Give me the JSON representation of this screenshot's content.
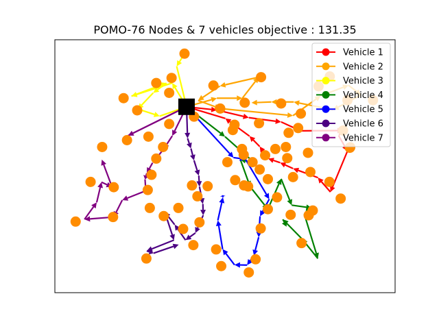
{
  "chart_data": {
    "type": "scatter",
    "title": "POMO-76 Nodes & 7 vehicles objective : 131.35",
    "xlabel": "",
    "ylabel": "",
    "xlim": [
      0,
      100
    ],
    "ylim": [
      0,
      100
    ],
    "axis_ticks_visible": false,
    "grid": false,
    "legend_position": "top-right",
    "node_color": "#FF8C00",
    "depot_color": "#000000",
    "depot": [
      38.7,
      73.5
    ],
    "nodes": [
      [
        38.1,
        94.5
      ],
      [
        34.3,
        84.9
      ],
      [
        29.8,
        82.9
      ],
      [
        33.6,
        79.0
      ],
      [
        20.2,
        76.9
      ],
      [
        24.2,
        72.1
      ],
      [
        46.6,
        81.9
      ],
      [
        60.6,
        85.2
      ],
      [
        55.8,
        75.1
      ],
      [
        66.5,
        74.8
      ],
      [
        77.5,
        81.6
      ],
      [
        80.8,
        85.5
      ],
      [
        86.0,
        76.1
      ],
      [
        93.5,
        76.1
      ],
      [
        84.7,
        64.1
      ],
      [
        72.3,
        70.8
      ],
      [
        48.6,
        72.8
      ],
      [
        40.9,
        69.6
      ],
      [
        33.6,
        66.7
      ],
      [
        27.5,
        61.7
      ],
      [
        21.2,
        60.3
      ],
      [
        13.9,
        57.6
      ],
      [
        31.8,
        57.6
      ],
      [
        29.8,
        53.0
      ],
      [
        28.4,
        46.6
      ],
      [
        27.3,
        40.6
      ],
      [
        27.9,
        33.5
      ],
      [
        40.3,
        42.4
      ],
      [
        41.9,
        38.1
      ],
      [
        36.3,
        33.5
      ],
      [
        32.0,
        30.3
      ],
      [
        42.5,
        27.8
      ],
      [
        37.7,
        25.2
      ],
      [
        40.7,
        18.8
      ],
      [
        26.9,
        13.5
      ],
      [
        17.1,
        29.9
      ],
      [
        6.1,
        28.1
      ],
      [
        10.5,
        43.8
      ],
      [
        17.3,
        41.7
      ],
      [
        52.3,
        64.3
      ],
      [
        55.0,
        56.8
      ],
      [
        61.8,
        54.3
      ],
      [
        60.2,
        48.7
      ],
      [
        58.1,
        51.6
      ],
      [
        55.5,
        54.5
      ],
      [
        50.7,
        51.6
      ],
      [
        62.6,
        44.9
      ],
      [
        55.6,
        42.4
      ],
      [
        65.3,
        37.7
      ],
      [
        62.6,
        33.0
      ],
      [
        69.3,
        30.8
      ],
      [
        60.5,
        25.4
      ],
      [
        72.5,
        19.6
      ],
      [
        47.4,
        17.1
      ],
      [
        44.9,
        42.1
      ],
      [
        48.9,
        10.5
      ],
      [
        59.0,
        13.2
      ],
      [
        57.0,
        8.0
      ],
      [
        74.6,
        30.6
      ],
      [
        74.4,
        55.3
      ],
      [
        68.3,
        53.2
      ],
      [
        67.9,
        57.6
      ],
      [
        70.0,
        45.7
      ],
      [
        68.7,
        63.2
      ],
      [
        75.1,
        47.7
      ],
      [
        86.7,
        57.3
      ],
      [
        80.7,
        43.8
      ],
      [
        84.0,
        37.2
      ],
      [
        75.8,
        32.5
      ],
      [
        86.8,
        57.5
      ],
      [
        56.8,
        42.0
      ],
      [
        53.0,
        44.5
      ],
      [
        64.8,
        56.8
      ],
      [
        52.8,
        66.4
      ],
      [
        60.0,
        67.0
      ],
      [
        71.5,
        65.1
      ]
    ],
    "routes_note": "",
    "series": [
      {
        "name": "Vehicle 1",
        "color": "#FF0000",
        "path": [
          [
            38.7,
            73.5
          ],
          [
            47.6,
            72.2
          ],
          [
            57.0,
            69.2
          ],
          [
            66.5,
            67.5
          ],
          [
            72.2,
            64.0
          ],
          [
            84.7,
            64.1
          ],
          [
            83.4,
            62.1
          ],
          [
            86.0,
            56.0
          ],
          [
            81.0,
            39.8
          ],
          [
            77.3,
            45.5
          ],
          [
            70.0,
            49.1
          ],
          [
            66.2,
            51.4
          ],
          [
            62.7,
            53.0
          ],
          [
            60.2,
            57.8
          ],
          [
            57.2,
            61.9
          ],
          [
            50.1,
            68.9
          ],
          [
            38.7,
            73.5
          ]
        ]
      },
      {
        "name": "Vehicle 2",
        "color": "#FFA500",
        "path": [
          [
            38.7,
            73.5
          ],
          [
            47.6,
            76.9
          ],
          [
            55.1,
            76.9
          ],
          [
            59.9,
            85.2
          ],
          [
            48.5,
            81.7
          ],
          [
            42.1,
            76.0
          ],
          [
            48.6,
            72.8
          ],
          [
            70.0,
            70.0
          ],
          [
            78.1,
            77.8
          ],
          [
            86.3,
            82.0
          ],
          [
            90.0,
            78.2
          ],
          [
            81.8,
            72.3
          ],
          [
            70.2,
            75.4
          ],
          [
            63.6,
            75.4
          ],
          [
            57.8,
            75.1
          ]
        ]
      },
      {
        "name": "Vehicle 3",
        "color": "#FFFF00",
        "path": [
          [
            38.1,
            94.5
          ],
          [
            35.8,
            89.5
          ],
          [
            38.7,
            73.5
          ],
          [
            34.5,
            82.9
          ],
          [
            22.5,
            77.7
          ],
          [
            32.8,
            82.9
          ],
          [
            28.9,
            79.0
          ],
          [
            24.4,
            72.6
          ],
          [
            30.8,
            69.8
          ],
          [
            38.7,
            73.5
          ]
        ]
      },
      {
        "name": "Vehicle 4",
        "color": "#008000",
        "path": [
          [
            38.7,
            73.5
          ],
          [
            50.0,
            61.7
          ],
          [
            58.8,
            51.2
          ],
          [
            54.5,
            52.7
          ],
          [
            57.4,
            41.9
          ],
          [
            62.6,
            33.0
          ],
          [
            66.5,
            45.0
          ],
          [
            69.6,
            34.6
          ],
          [
            75.5,
            33.5
          ],
          [
            73.3,
            31.1
          ],
          [
            77.3,
            13.5
          ],
          [
            72.6,
            21.3
          ],
          [
            67.0,
            29.0
          ],
          [
            68.1,
            26.1
          ]
        ]
      },
      {
        "name": "Vehicle 5",
        "color": "#0000FF",
        "path": [
          [
            38.7,
            73.5
          ],
          [
            52.5,
            53.4
          ],
          [
            56.0,
            52.8
          ],
          [
            63.0,
            37.0
          ],
          [
            60.3,
            30.2
          ],
          [
            59.9,
            21.9
          ],
          [
            58.5,
            14.7
          ],
          [
            56.5,
            10.9
          ],
          [
            52.8,
            11.0
          ],
          [
            49.3,
            17.2
          ],
          [
            47.9,
            28.6
          ],
          [
            49.4,
            37.7
          ],
          [
            49.3,
            38.6
          ]
        ]
      },
      {
        "name": "Vehicle 6",
        "color": "#4B0082",
        "path": [
          [
            38.7,
            73.5
          ],
          [
            39.0,
            61.0
          ],
          [
            40.0,
            57.0
          ],
          [
            40.9,
            52.3
          ],
          [
            42.3,
            46.3
          ],
          [
            42.5,
            41.9
          ],
          [
            43.5,
            35.1
          ],
          [
            43.6,
            30.6
          ],
          [
            41.3,
            23.6
          ],
          [
            38.4,
            20.8
          ],
          [
            35.2,
            26.9
          ],
          [
            32.3,
            31.9
          ],
          [
            35.0,
            20.8
          ],
          [
            27.0,
            16.5
          ],
          [
            29.0,
            15.6
          ],
          [
            36.4,
            19.0
          ]
        ]
      },
      {
        "name": "Vehicle 7",
        "color": "#800080",
        "path": [
          [
            38.7,
            73.5
          ],
          [
            21.5,
            62.1
          ],
          [
            38.7,
            73.5
          ],
          [
            34.5,
            62.0
          ],
          [
            32.0,
            56.8
          ],
          [
            28.7,
            51.3
          ],
          [
            27.0,
            47.2
          ],
          [
            26.5,
            44.8
          ],
          [
            26.8,
            38.8
          ],
          [
            27.3,
            40.6
          ],
          [
            19.8,
            36.6
          ],
          [
            17.3,
            29.9
          ],
          [
            8.7,
            29.0
          ],
          [
            12.3,
            35.7
          ],
          [
            13.7,
            43.7
          ],
          [
            16.8,
            41.8
          ],
          [
            13.8,
            52.6
          ]
        ]
      }
    ]
  }
}
